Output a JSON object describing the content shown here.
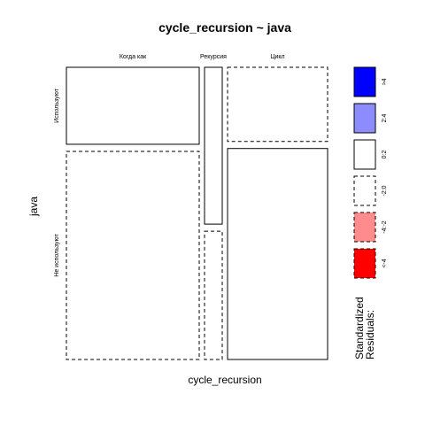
{
  "chart_data": {
    "type": "mosaic",
    "title": "cycle_recursion ~ java",
    "xlabel": "cycle_recursion",
    "ylabel": "java",
    "x_categories": [
      "Когда как",
      "Рекурсия",
      "Цикл"
    ],
    "y_categories": [
      "Используют",
      "Не используют"
    ],
    "column_share": [
      0.503,
      0.069,
      0.377
    ],
    "row_share_within_column": [
      [
        0.27,
        0.73
      ],
      [
        0.55,
        0.45
      ],
      [
        0.26,
        0.74
      ]
    ],
    "residual_sign": [
      [
        "positive",
        "negative"
      ],
      [
        "positive",
        "negative"
      ],
      [
        "negative",
        "positive"
      ]
    ],
    "legend": {
      "title": "Standardized\nResiduals:",
      "title_lines": [
        "Standardized",
        "Residuals:"
      ],
      "items": [
        {
          "label": ">4",
          "color": "#0000ff",
          "dashed": false
        },
        {
          "label": "2:4",
          "color": "#8c8cff",
          "dashed": false
        },
        {
          "label": "0:2",
          "color": "#ffffff",
          "dashed": false
        },
        {
          "label": "-2:0",
          "color": "#ffffff",
          "dashed": true
        },
        {
          "label": "-4:-2",
          "color": "#ff8c8c",
          "dashed": true
        },
        {
          "label": "<-4",
          "color": "#ff0000",
          "dashed": true
        }
      ]
    }
  }
}
